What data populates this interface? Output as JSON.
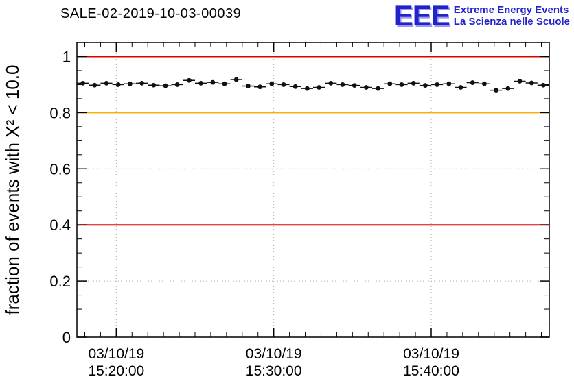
{
  "header": {
    "title": "SALE-02-2019-10-03-00039",
    "logo": {
      "text": "EEE",
      "line1": "Extreme Energy Events",
      "line2": "La Scienza nelle Scuole",
      "color": "#2323cc"
    }
  },
  "chart_data": {
    "type": "scatter",
    "title": "SALE-02-2019-10-03-00039",
    "ylabel": "fraction of events with X² < 10.0",
    "xlabel": "",
    "grid": true,
    "xlim": [
      17.5,
      47.5
    ],
    "ylim": [
      0,
      1.05
    ],
    "x_unit": "minutes after 15:00 on 03/10/19",
    "yticks": [
      0,
      0.2,
      0.4,
      0.6,
      0.8,
      1
    ],
    "ytick_labels": [
      "0",
      "0.2",
      "0.4",
      "0.6",
      "0.8",
      "1"
    ],
    "xticks": [
      20,
      30,
      40
    ],
    "xtick_labels": [
      {
        "date": "03/10/19",
        "time": "15:20:00"
      },
      {
        "date": "03/10/19",
        "time": "15:30:00"
      },
      {
        "date": "03/10/19",
        "time": "15:40:00"
      }
    ],
    "reference_lines": [
      {
        "y": 1.0,
        "color": "#dd0000"
      },
      {
        "y": 0.8,
        "color": "#ffaa00"
      },
      {
        "y": 0.4,
        "color": "#dd0000"
      }
    ],
    "marker": {
      "color": "#111111",
      "bin_half_width_min": 0.375
    },
    "x": [
      17.875,
      18.625,
      19.375,
      20.125,
      20.875,
      21.625,
      22.375,
      23.125,
      23.875,
      24.625,
      25.375,
      26.125,
      26.875,
      27.625,
      28.375,
      29.125,
      29.875,
      30.625,
      31.375,
      32.125,
      32.875,
      33.625,
      34.375,
      35.125,
      35.875,
      36.625,
      37.375,
      38.125,
      38.875,
      39.625,
      40.375,
      41.125,
      41.875,
      42.625,
      43.375,
      44.125,
      44.875,
      45.625,
      46.375,
      47.125
    ],
    "y": [
      0.905,
      0.898,
      0.905,
      0.9,
      0.903,
      0.905,
      0.898,
      0.896,
      0.9,
      0.915,
      0.905,
      0.908,
      0.903,
      0.918,
      0.895,
      0.892,
      0.903,
      0.9,
      0.893,
      0.886,
      0.89,
      0.905,
      0.9,
      0.897,
      0.89,
      0.886,
      0.903,
      0.9,
      0.905,
      0.897,
      0.9,
      0.903,
      0.89,
      0.907,
      0.903,
      0.88,
      0.886,
      0.912,
      0.906,
      0.898
    ]
  }
}
